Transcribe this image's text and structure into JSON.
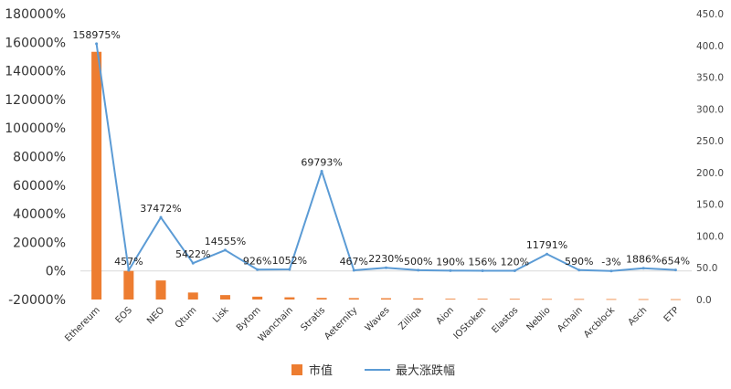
{
  "chart_data": {
    "type": "bar",
    "categories": [
      "Ethereum",
      "EOS",
      "NEO",
      "Qtum",
      "Lisk",
      "Bytom",
      "Wanchain",
      "Stratis",
      "Aeternity",
      "Waves",
      "Zilliqa",
      "Aion",
      "IOStoken",
      "Elastos",
      "Neblio",
      "Achain",
      "Arcblock",
      "Asch",
      "ETP"
    ],
    "series": [
      {
        "name": "市值",
        "type": "bar",
        "axis": "right",
        "color": "#ED7D31",
        "values": [
          390,
          45,
          30,
          11,
          7,
          4.5,
          3.5,
          2.5,
          2.2,
          2,
          1.8,
          1.2,
          1.1,
          1,
          0.9,
          0.8,
          0.7,
          0.6,
          0.5
        ]
      },
      {
        "name": "最大涨跌幅",
        "type": "line",
        "axis": "left",
        "color": "#5B9BD5",
        "values": [
          158975,
          457,
          37472,
          5422,
          14555,
          926,
          1052,
          69793,
          467,
          2230,
          500,
          190,
          156,
          120,
          11791,
          590,
          -3,
          1886,
          654
        ],
        "data_labels": [
          "158975%",
          "457%",
          "37472%",
          "5422%",
          "14555%",
          "926%",
          "1052%",
          "69793%",
          "467%",
          "2230%",
          "500%",
          "190%",
          "156%",
          "120%",
          "11791%",
          "590%",
          "-3%",
          "1886%",
          "654%"
        ]
      }
    ],
    "y_left": {
      "min": -20000,
      "max": 180000,
      "step": 20000,
      "tick_labels": [
        "-20000%",
        "0%",
        "20000%",
        "40000%",
        "60000%",
        "80000%",
        "100000%",
        "120000%",
        "140000%",
        "160000%",
        "180000%"
      ]
    },
    "y_right": {
      "min": 0,
      "max": 450,
      "step": 50,
      "tick_labels": [
        "0.0",
        "50.0",
        "100.0",
        "150.0",
        "200.0",
        "250.0",
        "300.0",
        "350.0",
        "400.0",
        "450.0"
      ]
    },
    "grid": false,
    "legend_position": "bottom"
  }
}
